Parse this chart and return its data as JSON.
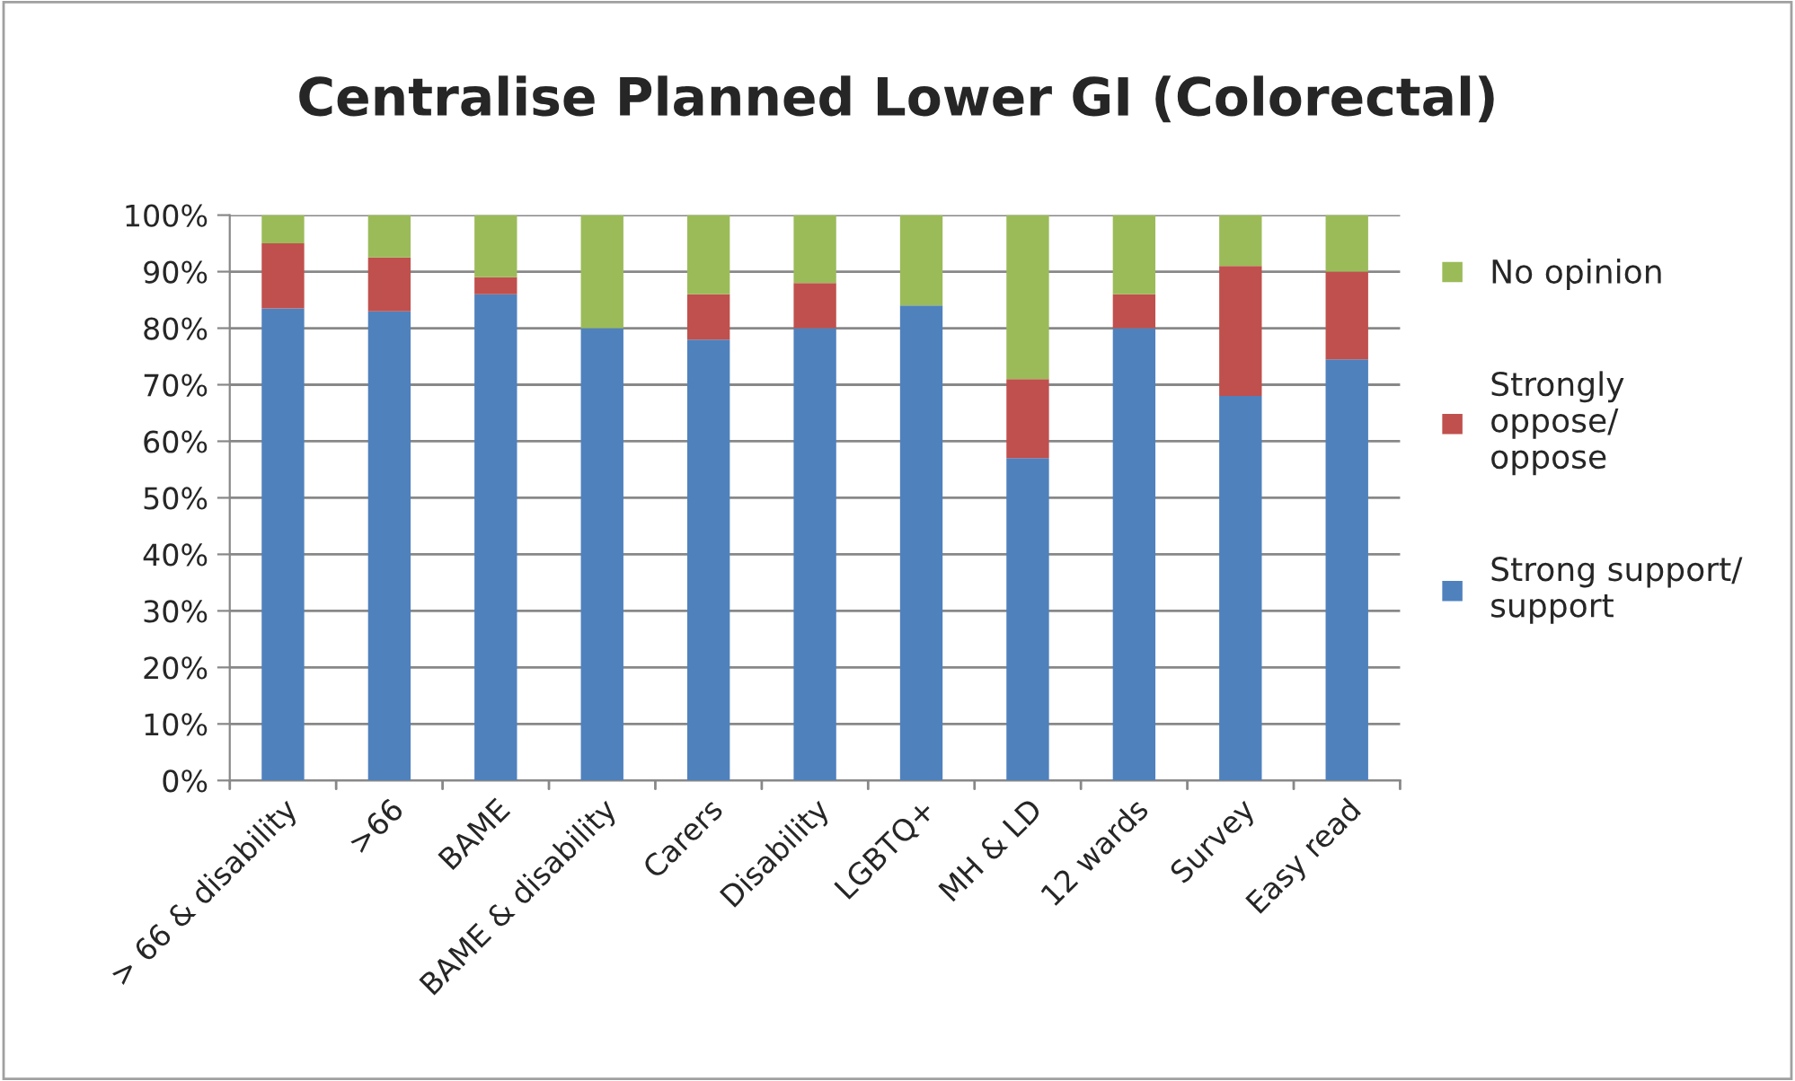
{
  "chart_data": {
    "type": "bar",
    "title": "Centralise Planned Lower GI (Colorectal)",
    "stacked": true,
    "categories": [
      "> 66 & disability",
      ">66",
      "BAME",
      "BAME & disability",
      "Carers",
      "Disability",
      "LGBTQ+",
      "MH & LD",
      "12 wards",
      "Survey",
      "Easy read"
    ],
    "series": [
      {
        "name": "Strong support/\nsupport",
        "color": "#4f81bd",
        "values": [
          83.5,
          83,
          86,
          80,
          78,
          80,
          84,
          57,
          80,
          68,
          74.5
        ]
      },
      {
        "name": "Strongly\noppose/\noppose",
        "color": "#c0504d",
        "values": [
          11.5,
          9.5,
          3,
          0,
          8,
          8,
          0,
          14,
          6,
          23,
          15.5
        ]
      },
      {
        "name": "No opinion",
        "color": "#9bbb59",
        "values": [
          5,
          7.5,
          11,
          20,
          14,
          12,
          16,
          29,
          14,
          9,
          10
        ]
      }
    ],
    "ylim": [
      0,
      100
    ],
    "yticks": [
      {
        "value": 0,
        "label": "0%"
      },
      {
        "value": 10,
        "label": "10%"
      },
      {
        "value": 20,
        "label": "20%"
      },
      {
        "value": 30,
        "label": "30%"
      },
      {
        "value": 40,
        "label": "40%"
      },
      {
        "value": 50,
        "label": "50%"
      },
      {
        "value": 60,
        "label": "60%"
      },
      {
        "value": 70,
        "label": "70%"
      },
      {
        "value": 80,
        "label": "80%"
      },
      {
        "value": 90,
        "label": "90%"
      },
      {
        "value": 100,
        "label": "100%"
      }
    ],
    "grid": "y",
    "legend": "right"
  }
}
